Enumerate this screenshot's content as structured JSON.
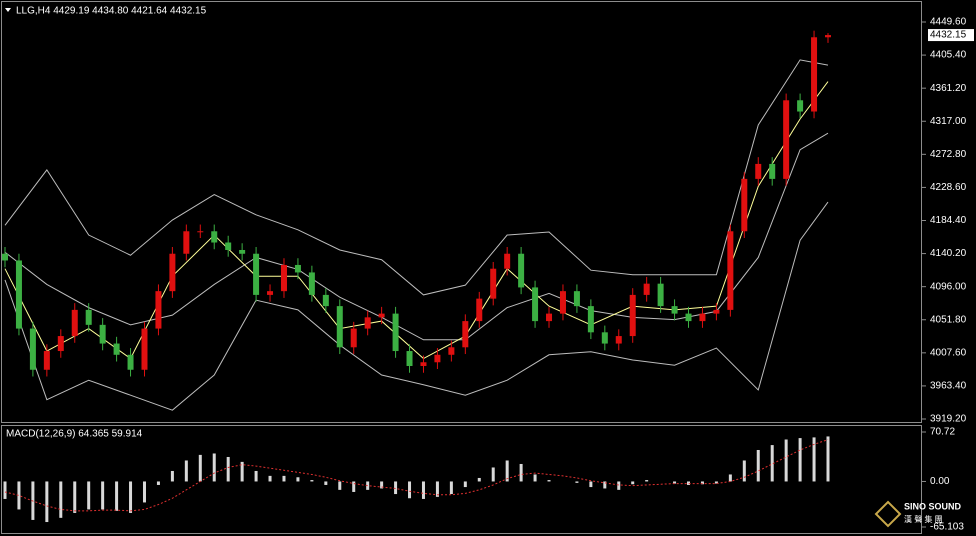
{
  "chart_data": [
    {
      "type": "candlestick",
      "title": "LLG,H4  4429.19 4434.80 4421.64 4432.15",
      "open": [
        4140,
        4131,
        4040,
        3985,
        4010,
        4030,
        4065,
        4045,
        4020,
        4005,
        3985,
        4040,
        4090,
        4140,
        4170,
        4170,
        4155,
        4145,
        4140,
        4085,
        4090,
        4125,
        4115,
        4085,
        4070,
        4015,
        4040,
        4055,
        4060,
        4010,
        3990,
        3995,
        4005,
        4015,
        4050,
        4080,
        4120,
        4140,
        4095,
        4050,
        4060,
        4090,
        4070,
        4035,
        4020,
        4030,
        4085,
        4100,
        4070,
        4060,
        4050,
        4060,
        4065,
        4170,
        4240,
        4260,
        4240,
        4345,
        4330,
        4429.19
      ],
      "high": [
        4149,
        4140,
        4049,
        4019,
        4039,
        4074,
        4074,
        4054,
        4029,
        4014,
        4049,
        4099,
        4149,
        4179,
        4179,
        4179,
        4164,
        4154,
        4149,
        4099,
        4134,
        4134,
        4124,
        4094,
        4079,
        4049,
        4064,
        4069,
        4069,
        4019,
        4004,
        4014,
        4024,
        4059,
        4089,
        4129,
        4149,
        4149,
        4104,
        4069,
        4099,
        4099,
        4079,
        4044,
        4039,
        4094,
        4109,
        4109,
        4079,
        4069,
        4069,
        4074,
        4179,
        4249,
        4269,
        4269,
        4354,
        4354,
        4438,
        4434.8
      ],
      "low": [
        4122,
        4031,
        3976,
        3976,
        4001,
        4021,
        4036,
        4011,
        3996,
        3976,
        3976,
        4031,
        4081,
        4131,
        4161,
        4146,
        4136,
        4131,
        4076,
        4076,
        4081,
        4106,
        4076,
        4061,
        4006,
        4006,
        4031,
        4046,
        4001,
        3981,
        3981,
        3986,
        3996,
        4006,
        4041,
        4071,
        4111,
        4086,
        4041,
        4041,
        4051,
        4061,
        4026,
        4011,
        4011,
        4021,
        4076,
        4061,
        4051,
        4041,
        4041,
        4051,
        4056,
        4161,
        4231,
        4231,
        4231,
        4321,
        4321,
        4421.64
      ],
      "close": [
        4131,
        4040,
        3985,
        4010,
        4030,
        4065,
        4045,
        4020,
        4005,
        3985,
        4040,
        4090,
        4140,
        4170,
        4170,
        4155,
        4145,
        4140,
        4085,
        4090,
        4125,
        4115,
        4085,
        4070,
        4015,
        4040,
        4055,
        4060,
        4010,
        3990,
        3995,
        4005,
        4015,
        4050,
        4080,
        4120,
        4140,
        4095,
        4050,
        4060,
        4090,
        4070,
        4035,
        4020,
        4030,
        4085,
        4100,
        4070,
        4060,
        4050,
        4060,
        4065,
        4170,
        4240,
        4260,
        4240,
        4345,
        4330,
        4429.19,
        4432.15
      ],
      "up_color": "#e01010",
      "down_color": "#3cb043",
      "overlays": [
        {
          "color": "#bdbdbd",
          "x": [
            0,
            3,
            6,
            9,
            12,
            15,
            18,
            21,
            24,
            27,
            30,
            33,
            36,
            39,
            42,
            45,
            48,
            51,
            54,
            57,
            59
          ],
          "values": [
            4178,
            4252,
            4165,
            4138,
            4185,
            4219,
            4192,
            4172,
            4145,
            4132,
            4085,
            4098,
            4165,
            4169,
            4118,
            4112,
            4112,
            4112,
            4312,
            4399,
            4392
          ]
        },
        {
          "color": "#bdbdbd",
          "x": [
            0,
            3,
            6,
            9,
            12,
            15,
            18,
            21,
            24,
            27,
            30,
            33,
            36,
            39,
            42,
            45,
            48,
            51,
            54,
            57,
            59
          ],
          "values": [
            4142,
            4099,
            4068,
            4045,
            4058,
            4099,
            4135,
            4119,
            4082,
            4055,
            4025,
            4025,
            4068,
            4087,
            4064,
            4055,
            4052,
            4063,
            4135,
            4279,
            4301
          ]
        },
        {
          "color": "#bdbdbd",
          "x": [
            0,
            3,
            6,
            9,
            12,
            15,
            18,
            21,
            24,
            27,
            30,
            33,
            36,
            39,
            42,
            45,
            48,
            51,
            54,
            57,
            59
          ],
          "values": [
            4105,
            3945,
            3971,
            3951,
            3931,
            3978,
            4078,
            4065,
            4018,
            3978,
            3965,
            3951,
            3971,
            4005,
            4009,
            3998,
            3991,
            4014,
            3958,
            4158,
            4209
          ]
        },
        {
          "color": "#ffff99",
          "x": [
            0,
            3,
            6,
            9,
            12,
            15,
            18,
            21,
            24,
            27,
            30,
            33,
            36,
            39,
            42,
            45,
            48,
            51,
            54,
            57,
            59
          ],
          "values": [
            4120,
            4010,
            4040,
            4000,
            4110,
            4165,
            4110,
            4110,
            4040,
            4050,
            4000,
            4030,
            4120,
            4070,
            4045,
            4070,
            4065,
            4070,
            4230,
            4320,
            4370
          ]
        }
      ],
      "ylim": [
        3919.2,
        4449.6
      ],
      "yticks": [
        {
          "value": 4449.6,
          "label": "4449.60"
        },
        {
          "value": 4405.4,
          "label": "4405.40"
        },
        {
          "value": 4361.2,
          "label": "4361.20"
        },
        {
          "value": 4317,
          "label": "4317.00"
        },
        {
          "value": 4272.8,
          "label": "4272.80"
        },
        {
          "value": 4228.6,
          "label": "4228.60"
        },
        {
          "value": 4184.4,
          "label": "4184.40"
        },
        {
          "value": 4140.2,
          "label": "4140.20"
        },
        {
          "value": 4096,
          "label": "4096.00"
        },
        {
          "value": 4051.8,
          "label": "4051.80"
        },
        {
          "value": 4007.6,
          "label": "4007.60"
        },
        {
          "value": 3963.4,
          "label": "3963.40"
        },
        {
          "value": 3919.2,
          "label": "3919.20"
        }
      ]
    },
    {
      "type": "macd",
      "title": "MACD(12,26,9) 64.365 59.914",
      "color": "#d9d9d9",
      "values": [
        -25,
        -40,
        -55,
        -58,
        -52,
        -45,
        -40,
        -40,
        -42,
        -45,
        -30,
        -5,
        15,
        30,
        38,
        40,
        35,
        28,
        15,
        8,
        8,
        6,
        2,
        -5,
        -12,
        -15,
        -12,
        -10,
        -18,
        -24,
        -25,
        -22,
        -18,
        -8,
        5,
        20,
        30,
        25,
        10,
        2,
        0,
        -2,
        -8,
        -10,
        -12,
        -4,
        2,
        0,
        -3,
        -5,
        -4,
        -3,
        10,
        30,
        45,
        52,
        60,
        62,
        63,
        64.365
      ],
      "signal": {
        "color": "#e03030",
        "values": [
          -15,
          -20,
          -28,
          -35,
          -40,
          -42,
          -42,
          -41,
          -41,
          -42,
          -40,
          -33,
          -24,
          -12,
          0,
          12,
          20,
          24,
          22,
          19,
          16,
          13,
          10,
          6,
          1,
          -3,
          -6,
          -8,
          -10,
          -14,
          -17,
          -19,
          -19,
          -17,
          -12,
          -5,
          4,
          10,
          12,
          10,
          8,
          5,
          1,
          -2,
          -5,
          -6,
          -5,
          -4,
          -3,
          -3,
          -3,
          -3,
          0,
          6,
          15,
          25,
          35,
          45,
          53,
          59.914
        ]
      },
      "ylim": [
        -65.103,
        70.72
      ],
      "yticks": [
        70.72,
        {
          "value": 0,
          "label": "0.00"
        },
        -65.103
      ]
    }
  ],
  "watermark": {
    "name": "SINO SOUND",
    "sub": "漢 聲 集 團"
  }
}
